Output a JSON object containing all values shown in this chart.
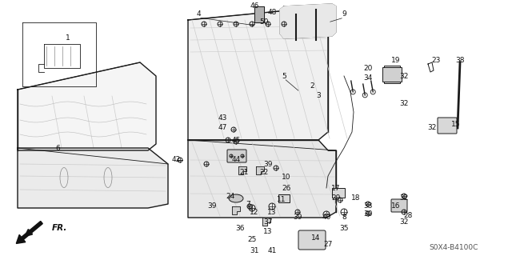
{
  "background_color": "#ffffff",
  "line_color": "#1a1a1a",
  "figsize": [
    6.4,
    3.2
  ],
  "dpi": 100,
  "diagram_code": "S0X4-B4100C",
  "labels": [
    [
      "1",
      85,
      48
    ],
    [
      "4",
      248,
      18
    ],
    [
      "46",
      318,
      8
    ],
    [
      "48",
      340,
      15
    ],
    [
      "50",
      330,
      28
    ],
    [
      "9",
      430,
      18
    ],
    [
      "5",
      355,
      95
    ],
    [
      "2",
      390,
      107
    ],
    [
      "3",
      398,
      120
    ],
    [
      "20",
      460,
      85
    ],
    [
      "34",
      460,
      98
    ],
    [
      "19",
      495,
      75
    ],
    [
      "32",
      505,
      95
    ],
    [
      "32",
      505,
      130
    ],
    [
      "23",
      545,
      75
    ],
    [
      "38",
      575,
      75
    ],
    [
      "15",
      570,
      155
    ],
    [
      "32",
      540,
      160
    ],
    [
      "6",
      72,
      185
    ],
    [
      "42",
      220,
      200
    ],
    [
      "43",
      278,
      148
    ],
    [
      "47",
      278,
      160
    ],
    [
      "45",
      295,
      175
    ],
    [
      "44",
      295,
      200
    ],
    [
      "39",
      335,
      205
    ],
    [
      "21",
      305,
      215
    ],
    [
      "22",
      330,
      215
    ],
    [
      "10",
      358,
      222
    ],
    [
      "26",
      358,
      235
    ],
    [
      "17",
      420,
      235
    ],
    [
      "29",
      420,
      248
    ],
    [
      "18",
      445,
      248
    ],
    [
      "33",
      460,
      258
    ],
    [
      "30",
      460,
      268
    ],
    [
      "16",
      495,
      258
    ],
    [
      "28",
      510,
      270
    ],
    [
      "32",
      505,
      248
    ],
    [
      "32",
      505,
      278
    ],
    [
      "7",
      310,
      255
    ],
    [
      "24",
      288,
      245
    ],
    [
      "39",
      265,
      258
    ],
    [
      "12",
      318,
      265
    ],
    [
      "13",
      340,
      265
    ],
    [
      "11",
      352,
      250
    ],
    [
      "39",
      372,
      272
    ],
    [
      "40",
      408,
      272
    ],
    [
      "8",
      430,
      272
    ],
    [
      "35",
      430,
      285
    ],
    [
      "36",
      300,
      285
    ],
    [
      "37",
      335,
      278
    ],
    [
      "13",
      335,
      290
    ],
    [
      "25",
      315,
      300
    ],
    [
      "14",
      395,
      298
    ],
    [
      "27",
      410,
      305
    ],
    [
      "31",
      318,
      313
    ],
    [
      "41",
      340,
      313
    ]
  ]
}
